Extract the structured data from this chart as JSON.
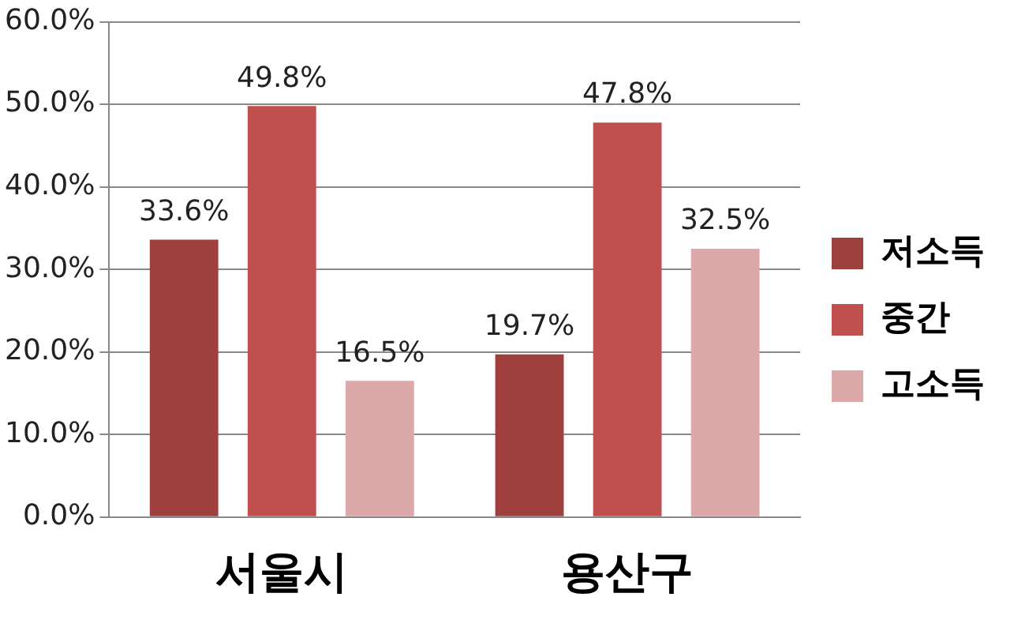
{
  "chart_data": {
    "type": "bar",
    "categories": [
      "서울시",
      "용산구"
    ],
    "series": [
      {
        "name": "저소득",
        "color": "#a0403e",
        "values": [
          33.6,
          19.7
        ],
        "value_labels": [
          "33.6%",
          "19.7%"
        ]
      },
      {
        "name": "중간",
        "color": "#c0504d",
        "values": [
          49.8,
          47.8
        ],
        "value_labels": [
          "49.8%",
          "47.8%"
        ]
      },
      {
        "name": "고소득",
        "color": "#dba9aa",
        "values": [
          16.5,
          32.5
        ],
        "value_labels": [
          "16.5%",
          "32.5%"
        ]
      }
    ],
    "ylim": [
      0,
      60
    ],
    "yticks": [
      {
        "value": 0,
        "label": "0.0%"
      },
      {
        "value": 10,
        "label": "10.0%"
      },
      {
        "value": 20,
        "label": "20.0%"
      },
      {
        "value": 30,
        "label": "30.0%"
      },
      {
        "value": 40,
        "label": "40.0%"
      },
      {
        "value": 50,
        "label": "50.0%"
      },
      {
        "value": 60,
        "label": "60.0%"
      }
    ],
    "grid": "y",
    "legend": "right"
  }
}
